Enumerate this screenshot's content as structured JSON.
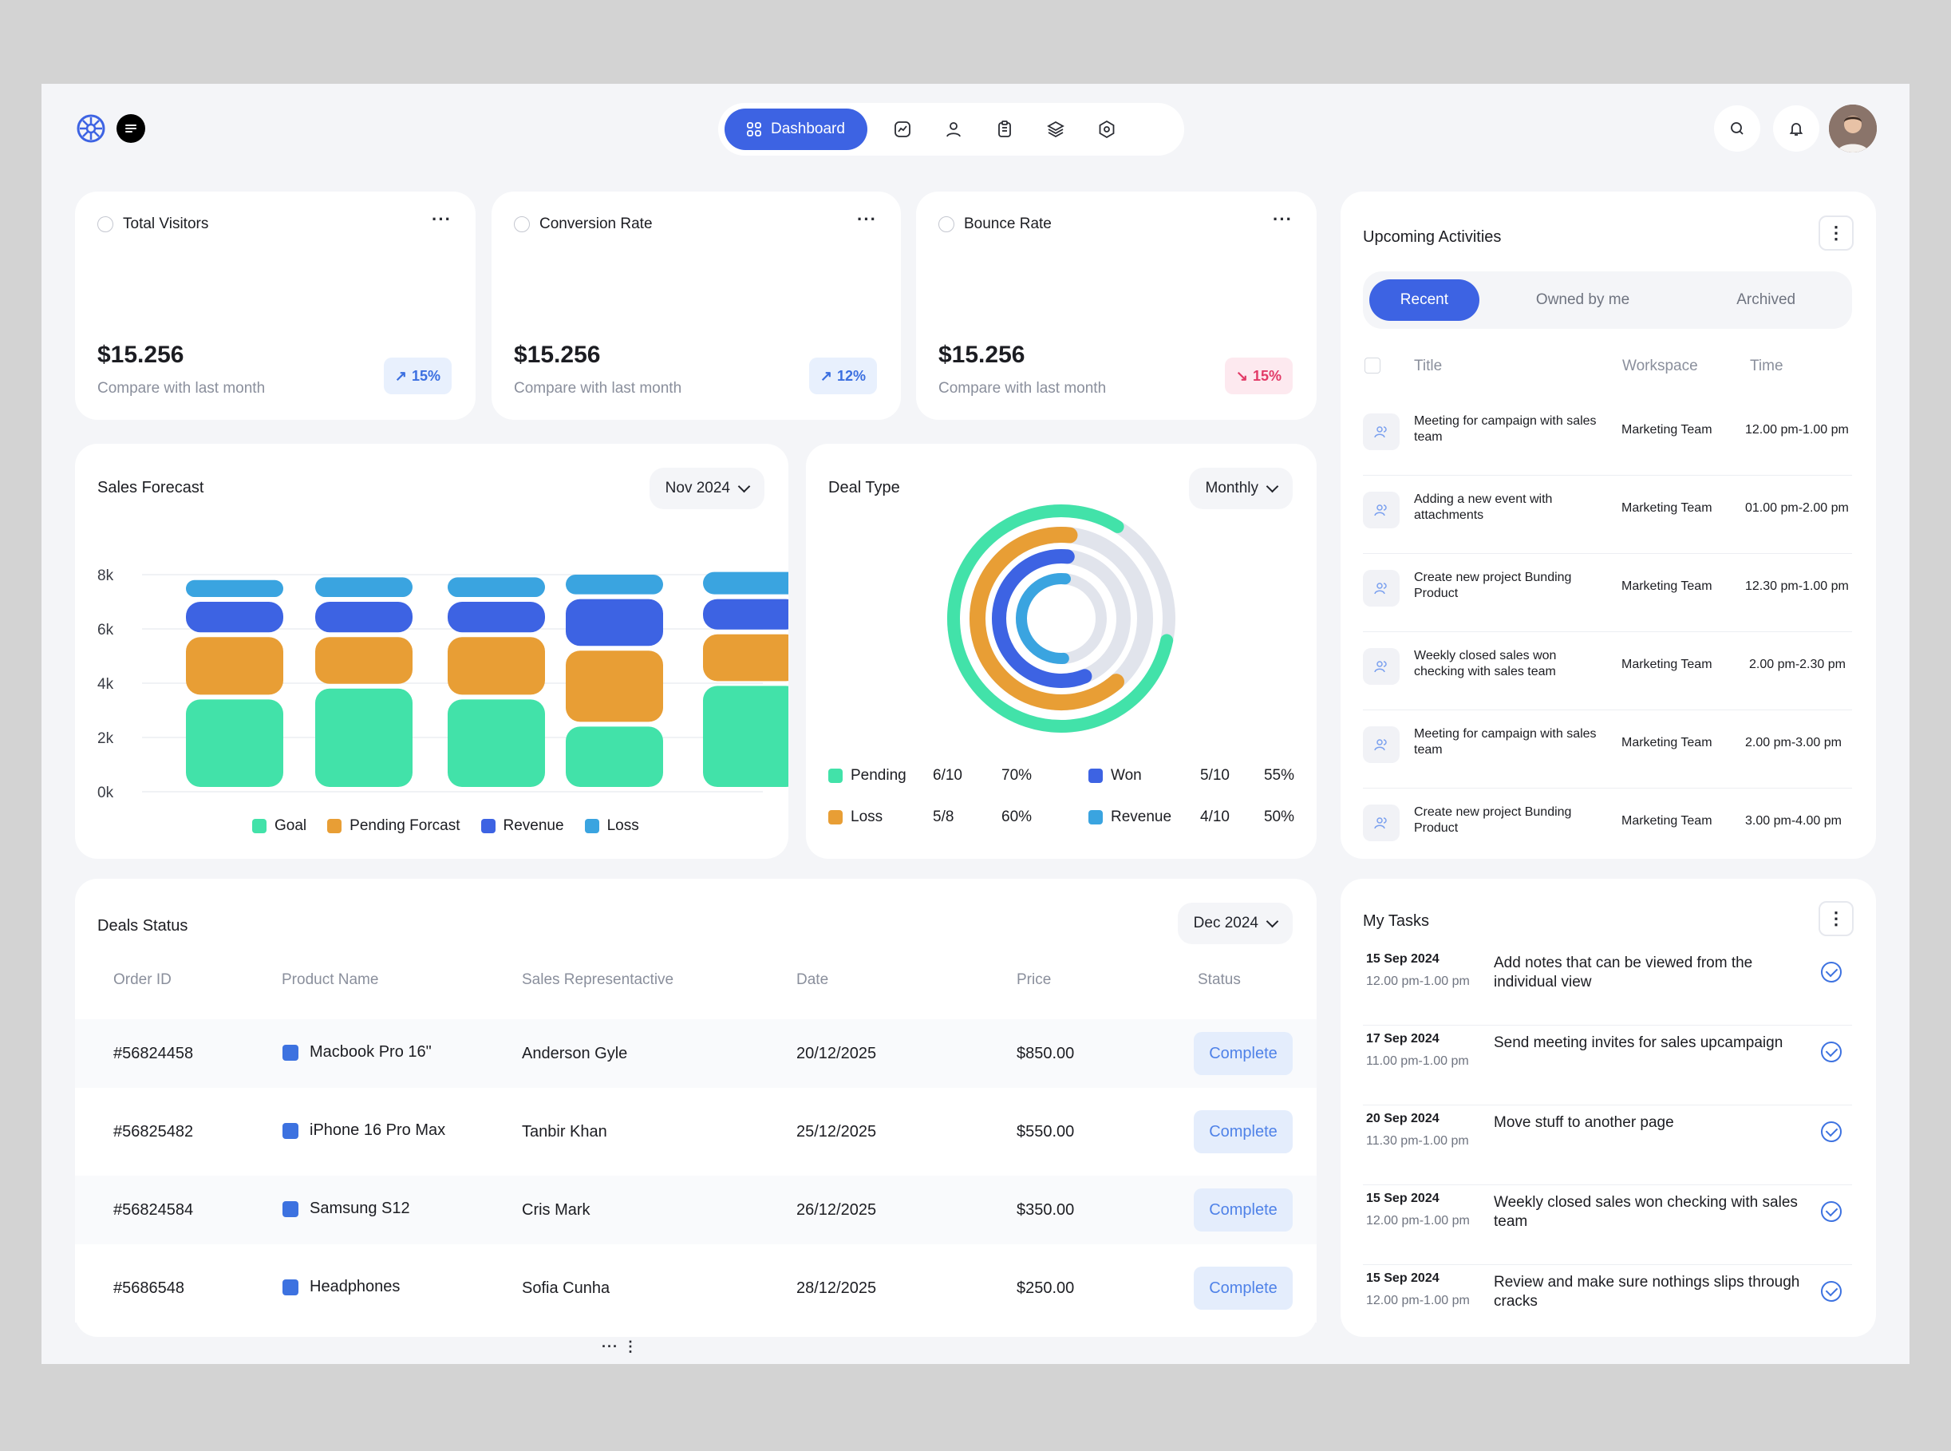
{
  "nav": {
    "dashboard_label": "Dashboard",
    "icons": [
      "chart-icon",
      "users-icon",
      "clipboard-icon",
      "layers-icon",
      "settings-icon"
    ]
  },
  "stats": [
    {
      "title": "Total Visitors",
      "value": "$15.256",
      "caption": "Compare with last month",
      "change": "15%",
      "direction": "up"
    },
    {
      "title": "Conversion Rate",
      "value": "$15.256",
      "caption": "Compare with last month",
      "change": "12%",
      "direction": "up"
    },
    {
      "title": "Bounce Rate",
      "value": "$15.256",
      "caption": "Compare with last month",
      "change": "15%",
      "direction": "down"
    }
  ],
  "sales_forecast": {
    "title": "Sales Forecast",
    "period": "Nov 2024",
    "legend": [
      "Goal",
      "Pending Forcast",
      "Revenue",
      "Loss"
    ],
    "y_ticks": [
      "8k",
      "6k",
      "4k",
      "2k",
      "0k"
    ]
  },
  "chart_data": [
    {
      "type": "bar",
      "stacked": true,
      "title": "Sales Forecast",
      "categories": [
        "",
        "",
        "",
        "",
        ""
      ],
      "series": [
        {
          "name": "Goal",
          "values": [
            3.4,
            3.8,
            3.4,
            2.4,
            3.9
          ],
          "color": "#42e2a9"
        },
        {
          "name": "Pending Forcast",
          "values": [
            2.3,
            1.9,
            2.3,
            2.8,
            1.9
          ],
          "color": "#e89e35"
        },
        {
          "name": "Revenue",
          "values": [
            1.3,
            1.3,
            1.3,
            1.9,
            1.3
          ],
          "color": "#3d63e3"
        },
        {
          "name": "Loss",
          "values": [
            0.8,
            0.9,
            0.9,
            0.9,
            1.0
          ],
          "color": "#3aa4e0"
        }
      ],
      "ylim": [
        0,
        8
      ],
      "grid": true,
      "legend_position": "bottom"
    },
    {
      "type": "radial",
      "title": "Deal Type",
      "series": [
        {
          "name": "Pending",
          "fraction": "6/10",
          "percent": 70,
          "color": "#42e2a9"
        },
        {
          "name": "Loss",
          "fraction": "5/8",
          "percent": 60,
          "color": "#e89e35"
        },
        {
          "name": "Won",
          "fraction": "5/10",
          "percent": 55,
          "color": "#3d63e3"
        },
        {
          "name": "Revenue",
          "fraction": "4/10",
          "percent": 50,
          "color": "#3aa4e0"
        }
      ]
    }
  ],
  "deal_type": {
    "title": "Deal Type",
    "period": "Monthly",
    "legend": [
      {
        "name": "Pending",
        "fraction": "6/10",
        "percent": "70%"
      },
      {
        "name": "Won",
        "fraction": "5/10",
        "percent": "55%"
      },
      {
        "name": "Loss",
        "fraction": "5/8",
        "percent": "60%"
      },
      {
        "name": "Revenue",
        "fraction": "4/10",
        "percent": "50%"
      }
    ]
  },
  "deals": {
    "title": "Deals Status",
    "period": "Dec 2024",
    "columns": [
      "Order ID",
      "Product Name",
      "Sales Representactive",
      "Date",
      "Price",
      "Status"
    ],
    "rows": [
      {
        "id": "#56824458",
        "product": "Macbook Pro 16\"",
        "rep": "Anderson Gyle",
        "date": "20/12/2025",
        "price": "$850.00",
        "status": "Complete"
      },
      {
        "id": "#56825482",
        "product": "iPhone 16 Pro Max",
        "rep": "Tanbir Khan",
        "date": "25/12/2025",
        "price": "$550.00",
        "status": "Complete"
      },
      {
        "id": "#56824584",
        "product": "Samsung S12",
        "rep": "Cris Mark",
        "date": "26/12/2025",
        "price": "$350.00",
        "status": "Complete"
      },
      {
        "id": "#5686548",
        "product": "Headphones",
        "rep": "Sofia Cunha",
        "date": "28/12/2025",
        "price": "$250.00",
        "status": "Complete"
      }
    ]
  },
  "activities": {
    "title": "Upcoming Activities",
    "tabs": [
      "Recent",
      "Owned by me",
      "Archived"
    ],
    "columns": [
      "Title",
      "Workspace",
      "Time"
    ],
    "rows": [
      {
        "title": "Meeting for campaign with sales team",
        "workspace": "Marketing Team",
        "time": "12.00 pm-1.00 pm"
      },
      {
        "title": "Adding a new event with attachments",
        "workspace": "Marketing Team",
        "time": "01.00 pm-2.00 pm"
      },
      {
        "title": "Create new project Bunding Product",
        "workspace": "Marketing Team",
        "time": "12.30 pm-1.00 pm"
      },
      {
        "title": "Weekly closed sales won checking with sales team",
        "workspace": "Marketing Team",
        "time": "2.00 pm-2.30 pm"
      },
      {
        "title": "Meeting for campaign with sales team",
        "workspace": "Marketing Team",
        "time": "2.00 pm-3.00 pm"
      },
      {
        "title": "Create new project Bunding Product",
        "workspace": "Marketing Team",
        "time": "3.00 pm-4.00 pm"
      }
    ]
  },
  "tasks": {
    "title": "My Tasks",
    "rows": [
      {
        "date": "15 Sep 2024",
        "time": "12.00 pm-1.00 pm",
        "text": "Add notes that can be viewed from the individual view"
      },
      {
        "date": "17 Sep 2024",
        "time": "11.00 pm-1.00 pm",
        "text": "Send meeting invites for sales upcampaign"
      },
      {
        "date": "20 Sep 2024",
        "time": "11.30 pm-1.00 pm",
        "text": "Move stuff to another page"
      },
      {
        "date": "15 Sep 2024",
        "time": "12.00 pm-1.00 pm",
        "text": "Weekly closed sales won checking with sales team"
      },
      {
        "date": "15 Sep 2024",
        "time": "12.00 pm-1.00 pm",
        "text": "Review and make sure nothings slips through cracks"
      }
    ]
  },
  "colors": {
    "accent": "#3d63e3",
    "goal": "#42e2a9",
    "pending": "#e89e35",
    "revenue": "#3d63e3",
    "loss": "#3aa4e0"
  }
}
